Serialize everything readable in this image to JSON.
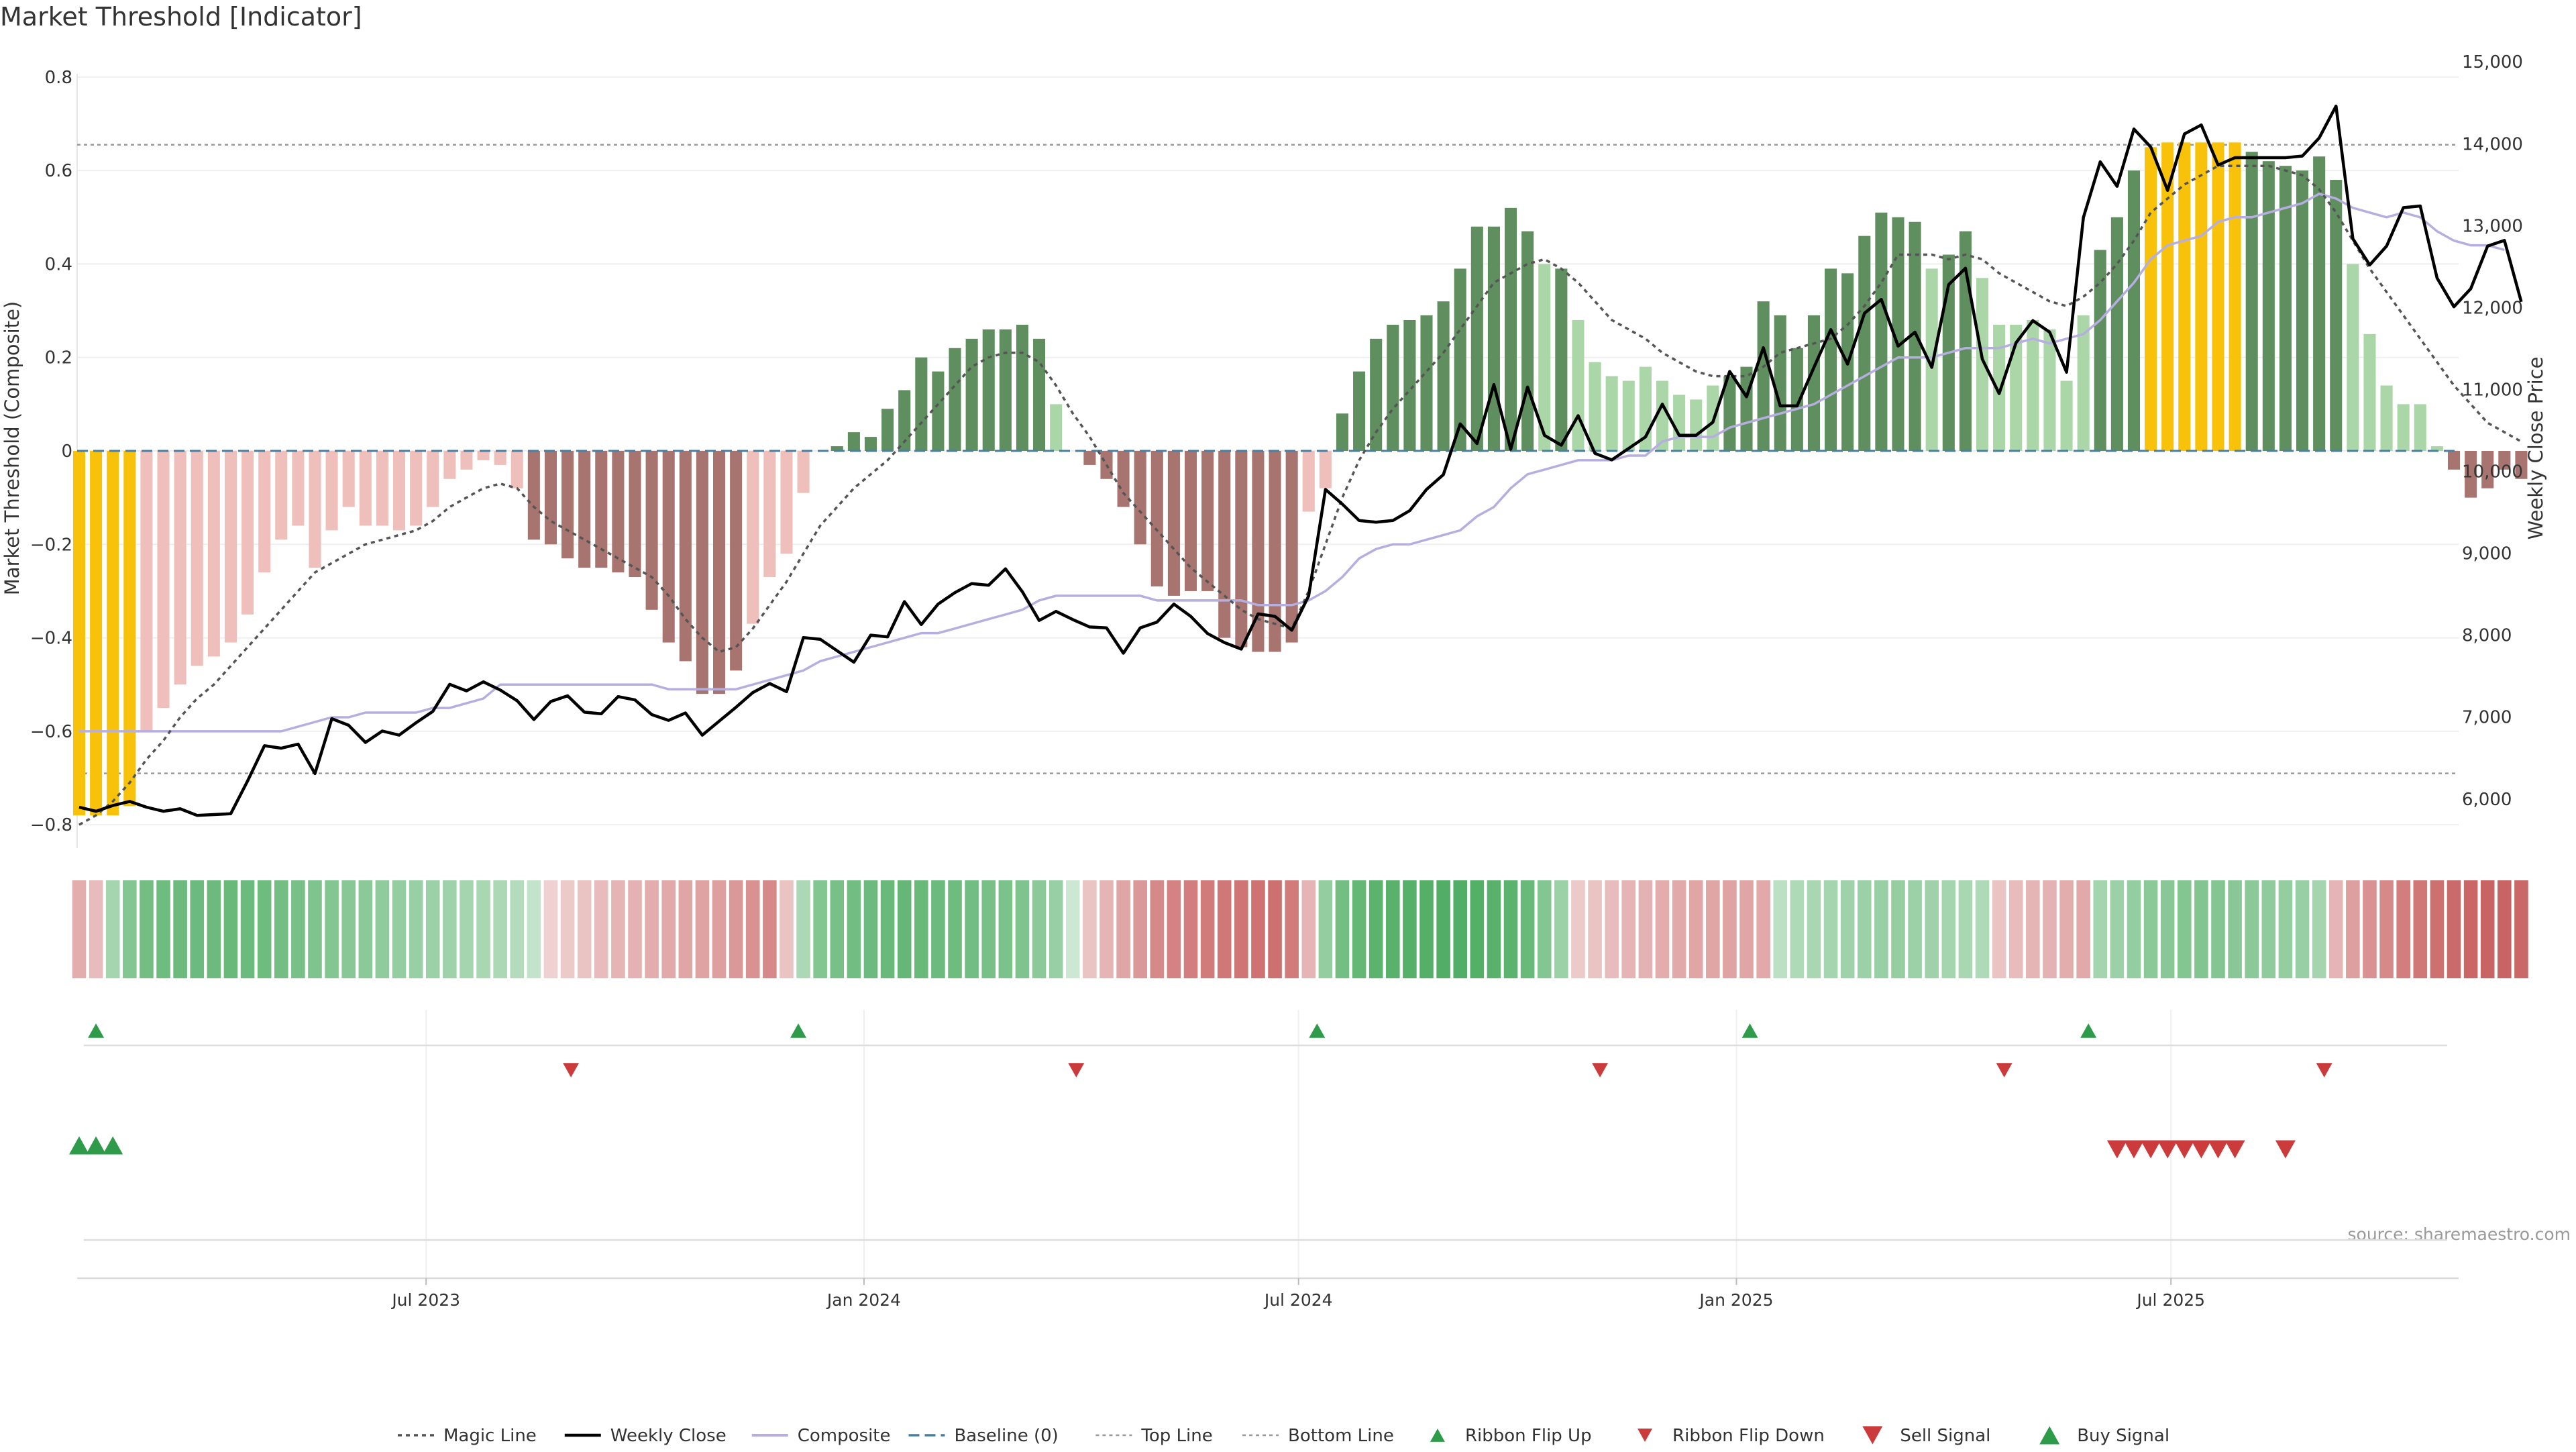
{
  "header": {
    "title": "Market Threshold [Indicator]"
  },
  "source": "source: sharemaestro.com",
  "colors": {
    "bull_dark": "#5f8f5f",
    "bull_light": "#abd7a8",
    "bear_dark": "#a87470",
    "bear_light": "#efc0bb",
    "extreme": "#f9c20a",
    "magic": "#555555",
    "close": "#000000",
    "composite": "#b7aee0",
    "baseline": "#4a7fa3",
    "flip_up": "#2e9b4a",
    "flip_down": "#cc3b3b"
  },
  "chart_data": {
    "type": "bar",
    "title": "Market Threshold [Indicator]",
    "ylabel": "Market Threshold (Composite)",
    "y2label": "Weekly Close Price",
    "ylim": [
      -0.85,
      0.85
    ],
    "y2lim": [
      5400,
      15100
    ],
    "yticks": [
      "0.8",
      "0.6",
      "0.4",
      "0.2",
      "0",
      "−0.2",
      "−0.4",
      "−0.6",
      "−0.8"
    ],
    "yticks_values": [
      0.8,
      0.6,
      0.4,
      0.2,
      0,
      -0.2,
      -0.4,
      -0.6,
      -0.8
    ],
    "y2ticks": [
      "15,000",
      "14,000",
      "13,000",
      "12,000",
      "11,000",
      "10,000",
      "9,000",
      "8,000",
      "7,000",
      "6,000"
    ],
    "y2ticks_values": [
      15000,
      14000,
      13000,
      12000,
      11000,
      10000,
      9000,
      8000,
      7000,
      6000
    ],
    "xticks": [
      "Jul 2023",
      "Jan 2024",
      "Jul 2024",
      "Jan 2025",
      "Jul 2025"
    ],
    "xticks_weeks": [
      20.6,
      46.6,
      72.4,
      98.4,
      124.2
    ],
    "n_weeks": 142,
    "top_line": 0.655,
    "bottom_line": -0.69,
    "composite_bars": [
      -0.78,
      -0.78,
      -0.78,
      -0.76,
      -0.6,
      -0.55,
      -0.5,
      -0.46,
      -0.44,
      -0.41,
      -0.35,
      -0.26,
      -0.19,
      -0.16,
      -0.25,
      -0.17,
      -0.12,
      -0.16,
      -0.16,
      -0.17,
      -0.16,
      -0.12,
      -0.06,
      -0.04,
      -0.02,
      -0.03,
      -0.08,
      -0.19,
      -0.2,
      -0.23,
      -0.25,
      -0.25,
      -0.26,
      -0.27,
      -0.34,
      -0.41,
      -0.45,
      -0.52,
      -0.52,
      -0.47,
      -0.37,
      -0.27,
      -0.22,
      -0.09,
      0,
      0.01,
      0.04,
      0.03,
      0.09,
      0.13,
      0.2,
      0.17,
      0.22,
      0.24,
      0.26,
      0.26,
      0.27,
      0.24,
      0.1,
      0,
      -0.03,
      -0.06,
      -0.12,
      -0.2,
      -0.29,
      -0.31,
      -0.3,
      -0.3,
      -0.4,
      -0.42,
      -0.43,
      -0.43,
      -0.41,
      -0.13,
      -0.08,
      0.08,
      0.17,
      0.24,
      0.27,
      0.28,
      0.29,
      0.32,
      0.39,
      0.48,
      0.48,
      0.52,
      0.47,
      0.4,
      0.39,
      0.28,
      0.19,
      0.16,
      0.15,
      0.18,
      0.15,
      0.12,
      0.11,
      0.14,
      0.16,
      0.18,
      0.32,
      0.29,
      0.22,
      0.29,
      0.39,
      0.38,
      0.46,
      0.51,
      0.5,
      0.49,
      0.39,
      0.42,
      0.47,
      0.37,
      0.27,
      0.27,
      0.28,
      0.26,
      0.15,
      0.29,
      0.43,
      0.5,
      0.6,
      0.65,
      0.66,
      0.66,
      0.66,
      0.66,
      0.66,
      0.64,
      0.62,
      0.61,
      0.6,
      0.63,
      0.58,
      0.4,
      0.25,
      0.14,
      0.1,
      0.1,
      0.01,
      -0.04,
      -0.1,
      -0.08,
      -0.04,
      -0.06
    ],
    "magic_line": [
      -0.8,
      -0.78,
      -0.75,
      -0.71,
      -0.66,
      -0.62,
      -0.57,
      -0.53,
      -0.5,
      -0.46,
      -0.42,
      -0.38,
      -0.34,
      -0.3,
      -0.26,
      -0.24,
      -0.22,
      -0.2,
      -0.19,
      -0.18,
      -0.17,
      -0.15,
      -0.12,
      -0.1,
      -0.08,
      -0.07,
      -0.08,
      -0.12,
      -0.15,
      -0.17,
      -0.19,
      -0.21,
      -0.23,
      -0.25,
      -0.27,
      -0.31,
      -0.36,
      -0.4,
      -0.43,
      -0.42,
      -0.38,
      -0.33,
      -0.28,
      -0.22,
      -0.16,
      -0.12,
      -0.08,
      -0.05,
      -0.02,
      0.02,
      0.06,
      0.1,
      0.14,
      0.18,
      0.2,
      0.21,
      0.21,
      0.19,
      0.14,
      0.08,
      0.03,
      -0.03,
      -0.09,
      -0.13,
      -0.17,
      -0.21,
      -0.25,
      -0.28,
      -0.31,
      -0.34,
      -0.36,
      -0.37,
      -0.38,
      -0.3,
      -0.2,
      -0.1,
      -0.02,
      0.04,
      0.09,
      0.13,
      0.17,
      0.21,
      0.26,
      0.31,
      0.36,
      0.38,
      0.4,
      0.41,
      0.39,
      0.36,
      0.32,
      0.28,
      0.26,
      0.24,
      0.21,
      0.19,
      0.17,
      0.16,
      0.16,
      0.16,
      0.18,
      0.21,
      0.22,
      0.23,
      0.24,
      0.27,
      0.31,
      0.36,
      0.42,
      0.42,
      0.42,
      0.41,
      0.42,
      0.41,
      0.38,
      0.36,
      0.34,
      0.32,
      0.31,
      0.33,
      0.36,
      0.4,
      0.45,
      0.51,
      0.54,
      0.57,
      0.59,
      0.61,
      0.61,
      0.61,
      0.61,
      0.6,
      0.59,
      0.56,
      0.51,
      0.45,
      0.39,
      0.34,
      0.29,
      0.24,
      0.19,
      0.14,
      0.1,
      0.06,
      0.04,
      0.02
    ],
    "composite_line": [
      -0.6,
      -0.6,
      -0.6,
      -0.6,
      -0.6,
      -0.6,
      -0.6,
      -0.6,
      -0.6,
      -0.6,
      -0.6,
      -0.6,
      -0.6,
      -0.59,
      -0.58,
      -0.57,
      -0.57,
      -0.56,
      -0.56,
      -0.56,
      -0.56,
      -0.55,
      -0.55,
      -0.54,
      -0.53,
      -0.5,
      -0.5,
      -0.5,
      -0.5,
      -0.5,
      -0.5,
      -0.5,
      -0.5,
      -0.5,
      -0.5,
      -0.51,
      -0.51,
      -0.51,
      -0.51,
      -0.51,
      -0.5,
      -0.49,
      -0.48,
      -0.47,
      -0.45,
      -0.44,
      -0.43,
      -0.42,
      -0.41,
      -0.4,
      -0.39,
      -0.39,
      -0.38,
      -0.37,
      -0.36,
      -0.35,
      -0.34,
      -0.32,
      -0.31,
      -0.31,
      -0.31,
      -0.31,
      -0.31,
      -0.31,
      -0.32,
      -0.32,
      -0.32,
      -0.32,
      -0.32,
      -0.32,
      -0.33,
      -0.33,
      -0.33,
      -0.32,
      -0.3,
      -0.27,
      -0.23,
      -0.21,
      -0.2,
      -0.2,
      -0.19,
      -0.18,
      -0.17,
      -0.14,
      -0.12,
      -0.08,
      -0.05,
      -0.04,
      -0.03,
      -0.02,
      -0.02,
      -0.02,
      -0.01,
      -0.01,
      0.02,
      0.03,
      0.03,
      0.03,
      0.05,
      0.06,
      0.07,
      0.08,
      0.09,
      0.1,
      0.12,
      0.14,
      0.16,
      0.18,
      0.2,
      0.2,
      0.2,
      0.21,
      0.22,
      0.22,
      0.22,
      0.23,
      0.24,
      0.23,
      0.24,
      0.25,
      0.28,
      0.32,
      0.36,
      0.41,
      0.44,
      0.45,
      0.46,
      0.49,
      0.5,
      0.5,
      0.51,
      0.52,
      0.53,
      0.55,
      0.54,
      0.52,
      0.51,
      0.5,
      0.51,
      0.5,
      0.47,
      0.45,
      0.44,
      0.44,
      0.43
    ],
    "weekly_close": [
      5900,
      5850,
      5920,
      5970,
      5900,
      5850,
      5880,
      5800,
      5810,
      5820,
      6220,
      6650,
      6620,
      6670,
      6310,
      6980,
      6900,
      6690,
      6830,
      6780,
      6930,
      7070,
      7400,
      7320,
      7430,
      7330,
      7200,
      6970,
      7190,
      7260,
      7060,
      7040,
      7250,
      7210,
      7030,
      6960,
      7050,
      6780,
      6950,
      7120,
      7300,
      7410,
      7310,
      7970,
      7950,
      7810,
      7670,
      8000,
      7980,
      8410,
      8130,
      8380,
      8520,
      8630,
      8610,
      8810,
      8530,
      8180,
      8290,
      8190,
      8100,
      8090,
      7780,
      8090,
      8160,
      8380,
      8230,
      8020,
      7910,
      7830,
      8260,
      8230,
      8060,
      8480,
      9780,
      9600,
      9400,
      9380,
      9400,
      9520,
      9780,
      9960,
      10580,
      10340,
      11060,
      10270,
      11030,
      10440,
      10320,
      10680,
      10220,
      10140,
      10280,
      10420,
      10820,
      10440,
      10440,
      10600,
      11220,
      10910,
      11510,
      10800,
      10800,
      11270,
      11730,
      11310,
      11930,
      12100,
      11530,
      11700,
      11270,
      12280,
      12480,
      11370,
      10950,
      11570,
      11840,
      11700,
      11210,
      13100,
      13780,
      13480,
      14180,
      13960,
      13430,
      14120,
      14230,
      13740,
      13830,
      13830,
      13830,
      13830,
      13850,
      14070,
      14460,
      12840,
      12520,
      12750,
      13220,
      13240,
      12360,
      12010,
      12230,
      12750,
      12820,
      12070
    ],
    "ribbon": [
      -0.35,
      -0.25,
      0.35,
      0.55,
      0.65,
      0.68,
      0.7,
      0.7,
      0.7,
      0.72,
      0.7,
      0.68,
      0.65,
      0.62,
      0.58,
      0.55,
      0.52,
      0.5,
      0.48,
      0.45,
      0.42,
      0.4,
      0.38,
      0.35,
      0.32,
      0.3,
      0.25,
      0.15,
      -0.1,
      -0.15,
      -0.2,
      -0.25,
      -0.3,
      -0.32,
      -0.35,
      -0.38,
      -0.4,
      -0.42,
      -0.45,
      -0.5,
      -0.55,
      -0.6,
      -0.2,
      0.3,
      0.55,
      0.62,
      0.66,
      0.7,
      0.72,
      0.74,
      0.72,
      0.7,
      0.68,
      0.66,
      0.62,
      0.6,
      0.58,
      0.5,
      0.42,
      0.1,
      -0.2,
      -0.3,
      -0.4,
      -0.5,
      -0.6,
      -0.65,
      -0.68,
      -0.7,
      -0.72,
      -0.74,
      -0.76,
      -0.78,
      -0.7,
      -0.3,
      0.45,
      0.65,
      0.75,
      0.8,
      0.82,
      0.84,
      0.85,
      0.86,
      0.86,
      0.85,
      0.82,
      0.8,
      0.72,
      0.55,
      0.4,
      -0.15,
      -0.2,
      -0.25,
      -0.3,
      -0.32,
      -0.35,
      -0.38,
      -0.4,
      -0.4,
      -0.42,
      -0.4,
      -0.38,
      0.2,
      0.28,
      0.32,
      0.35,
      0.38,
      0.4,
      0.42,
      0.44,
      0.4,
      0.38,
      0.35,
      0.32,
      0.28,
      -0.2,
      -0.25,
      -0.3,
      -0.32,
      -0.35,
      -0.38,
      0.35,
      0.4,
      0.45,
      0.5,
      0.52,
      0.55,
      0.56,
      0.55,
      0.52,
      0.5,
      0.48,
      0.45,
      0.42,
      0.35,
      -0.3,
      -0.45,
      -0.55,
      -0.6,
      -0.68,
      -0.72,
      -0.78,
      -0.82,
      -0.85,
      -0.86,
      -0.86,
      -0.84
    ],
    "ribbon_flip_up_weeks": [
      1,
      42.7,
      73.5,
      99.2,
      119.3
    ],
    "ribbon_flip_down_weeks": [
      29.2,
      59.2,
      90.3,
      114.3,
      133.3
    ],
    "buy_signal_weeks": [
      0,
      1,
      2
    ],
    "sell_signal_weeks": [
      121,
      122,
      123,
      124,
      125,
      126,
      127,
      128,
      131
    ],
    "legend": [
      {
        "label": "Magic Line",
        "kind": "dotted"
      },
      {
        "label": "Weekly Close",
        "kind": "solid-black"
      },
      {
        "label": "Composite",
        "kind": "solid-lavender"
      },
      {
        "label": "Baseline (0)",
        "kind": "dashed-blue"
      },
      {
        "label": "Top Line",
        "kind": "dotted-grey"
      },
      {
        "label": "Bottom Line",
        "kind": "dotted-grey"
      },
      {
        "label": "Ribbon Flip Up",
        "kind": "triangle-up-small"
      },
      {
        "label": "Ribbon Flip Down",
        "kind": "triangle-down-small"
      },
      {
        "label": "Sell Signal",
        "kind": "triangle-down-large"
      },
      {
        "label": "Buy Signal",
        "kind": "triangle-up-large"
      }
    ],
    "legend_position": "bottom-center"
  }
}
